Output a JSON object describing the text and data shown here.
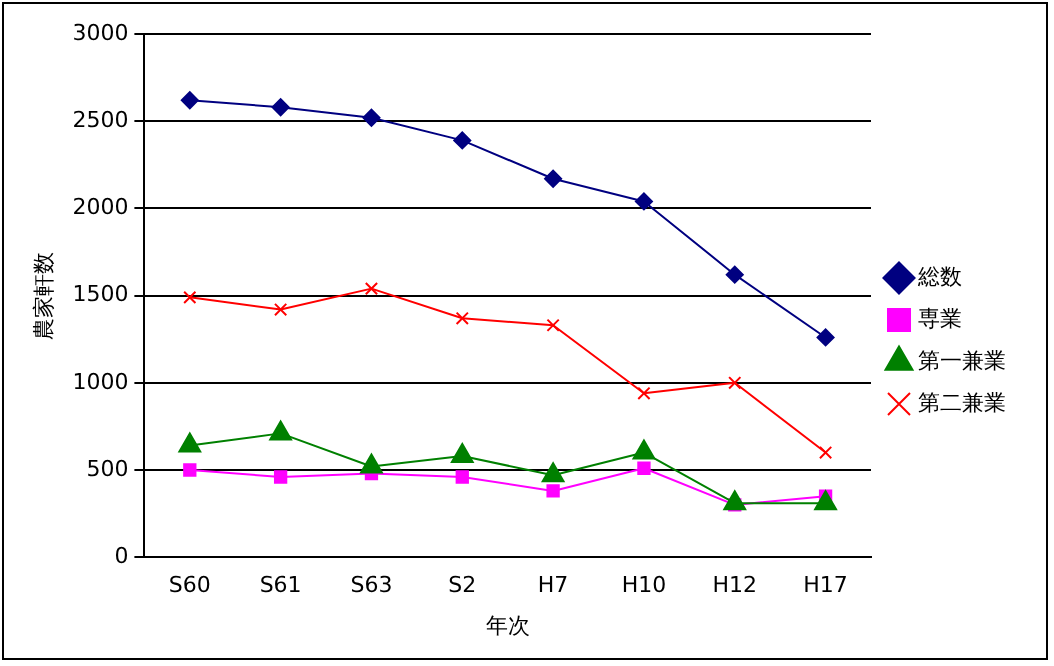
{
  "chart_data": {
    "type": "line",
    "xlabel": "年次",
    "ylabel": "農家軒数",
    "categories": [
      "S60",
      "S61",
      "S63",
      "S2",
      "H7",
      "H10",
      "H12",
      "H17"
    ],
    "series": [
      {
        "name": "総数",
        "color": "#000080",
        "marker": "diamond",
        "values": [
          2620,
          2580,
          2520,
          2390,
          2170,
          2040,
          1620,
          1260
        ]
      },
      {
        "name": "専業",
        "color": "#ff00ff",
        "marker": "square",
        "values": [
          500,
          460,
          480,
          460,
          380,
          510,
          300,
          350
        ]
      },
      {
        "name": "第一兼業",
        "color": "#008000",
        "marker": "triangle",
        "values": [
          640,
          710,
          520,
          580,
          470,
          600,
          310,
          310
        ]
      },
      {
        "name": "第二兼業",
        "color": "#ff0000",
        "marker": "cross",
        "values": [
          1490,
          1420,
          1540,
          1370,
          1330,
          940,
          1000,
          600
        ]
      }
    ],
    "ylim": [
      0,
      3000
    ],
    "yticks": [
      0,
      500,
      1000,
      1500,
      2000,
      2500,
      3000
    ],
    "grid": "y",
    "legend": "right",
    "line_style": "solid"
  }
}
